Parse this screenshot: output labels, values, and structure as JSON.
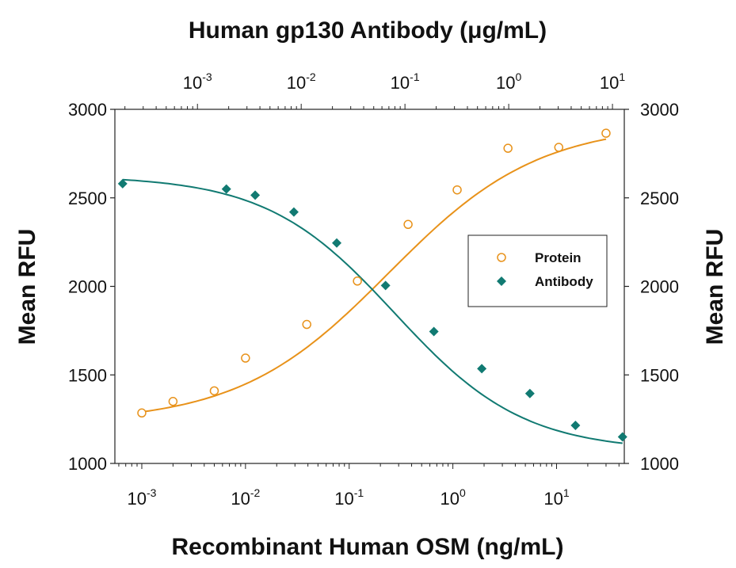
{
  "chart_data": {
    "type": "scatter",
    "top_title": "Human gp130 Antibody (μg/mL)",
    "xlabel": "Recombinant Human OSM (ng/mL)",
    "ylabel_left": "Mean RFU",
    "ylabel_right": "Mean RFU",
    "x_scale": "log",
    "x_bottom_range": [
      0.00055,
      45
    ],
    "x_top_range": [
      0.00016,
      13
    ],
    "ylim": [
      1000,
      3000
    ],
    "y_ticks": [
      1000,
      1500,
      2000,
      2500,
      3000
    ],
    "y_tick_labels": [
      "1000",
      "1500",
      "2000",
      "2500",
      "3000"
    ],
    "x_bottom_ticks": [
      {
        "value": 0.001,
        "base": "10",
        "exp": "-3"
      },
      {
        "value": 0.01,
        "base": "10",
        "exp": "-2"
      },
      {
        "value": 0.1,
        "base": "10",
        "exp": "-1"
      },
      {
        "value": 1,
        "base": "10",
        "exp": "0"
      },
      {
        "value": 10,
        "base": "10",
        "exp": "1"
      }
    ],
    "x_top_ticks": [
      {
        "value": 0.001,
        "base": "10",
        "exp": "-3"
      },
      {
        "value": 0.01,
        "base": "10",
        "exp": "-2"
      },
      {
        "value": 0.1,
        "base": "10",
        "exp": "-1"
      },
      {
        "value": 1,
        "base": "10",
        "exp": "0"
      },
      {
        "value": 10,
        "base": "10",
        "exp": "1"
      }
    ],
    "grid": false,
    "legend_position": "right",
    "series": [
      {
        "name": "Protein",
        "axis": "bottom",
        "marker": "open-circle",
        "color": "#E8921A",
        "x": [
          0.001,
          0.002,
          0.005,
          0.01,
          0.039,
          0.12,
          0.37,
          1.1,
          3.4,
          10.5,
          30
        ],
        "y": [
          1285,
          1350,
          1410,
          1595,
          1785,
          2030,
          2350,
          2545,
          2780,
          2785,
          2865
        ],
        "fit": {
          "bottom": 1230,
          "top": 2920,
          "ec50": 0.24,
          "hill": 0.6
        }
      },
      {
        "name": "Antibody",
        "axis": "top",
        "marker": "filled-diamond",
        "color": "#117A72",
        "x": [
          0.00019,
          0.0019,
          0.0036,
          0.0085,
          0.022,
          0.065,
          0.19,
          0.55,
          1.6,
          4.4,
          12.5
        ],
        "y": [
          2580,
          2550,
          2515,
          2420,
          2245,
          2005,
          1745,
          1535,
          1395,
          1215,
          1150
        ],
        "fit": {
          "bottom": 1070,
          "top": 2625,
          "ec50": 0.08,
          "hill": 0.7
        }
      }
    ]
  }
}
